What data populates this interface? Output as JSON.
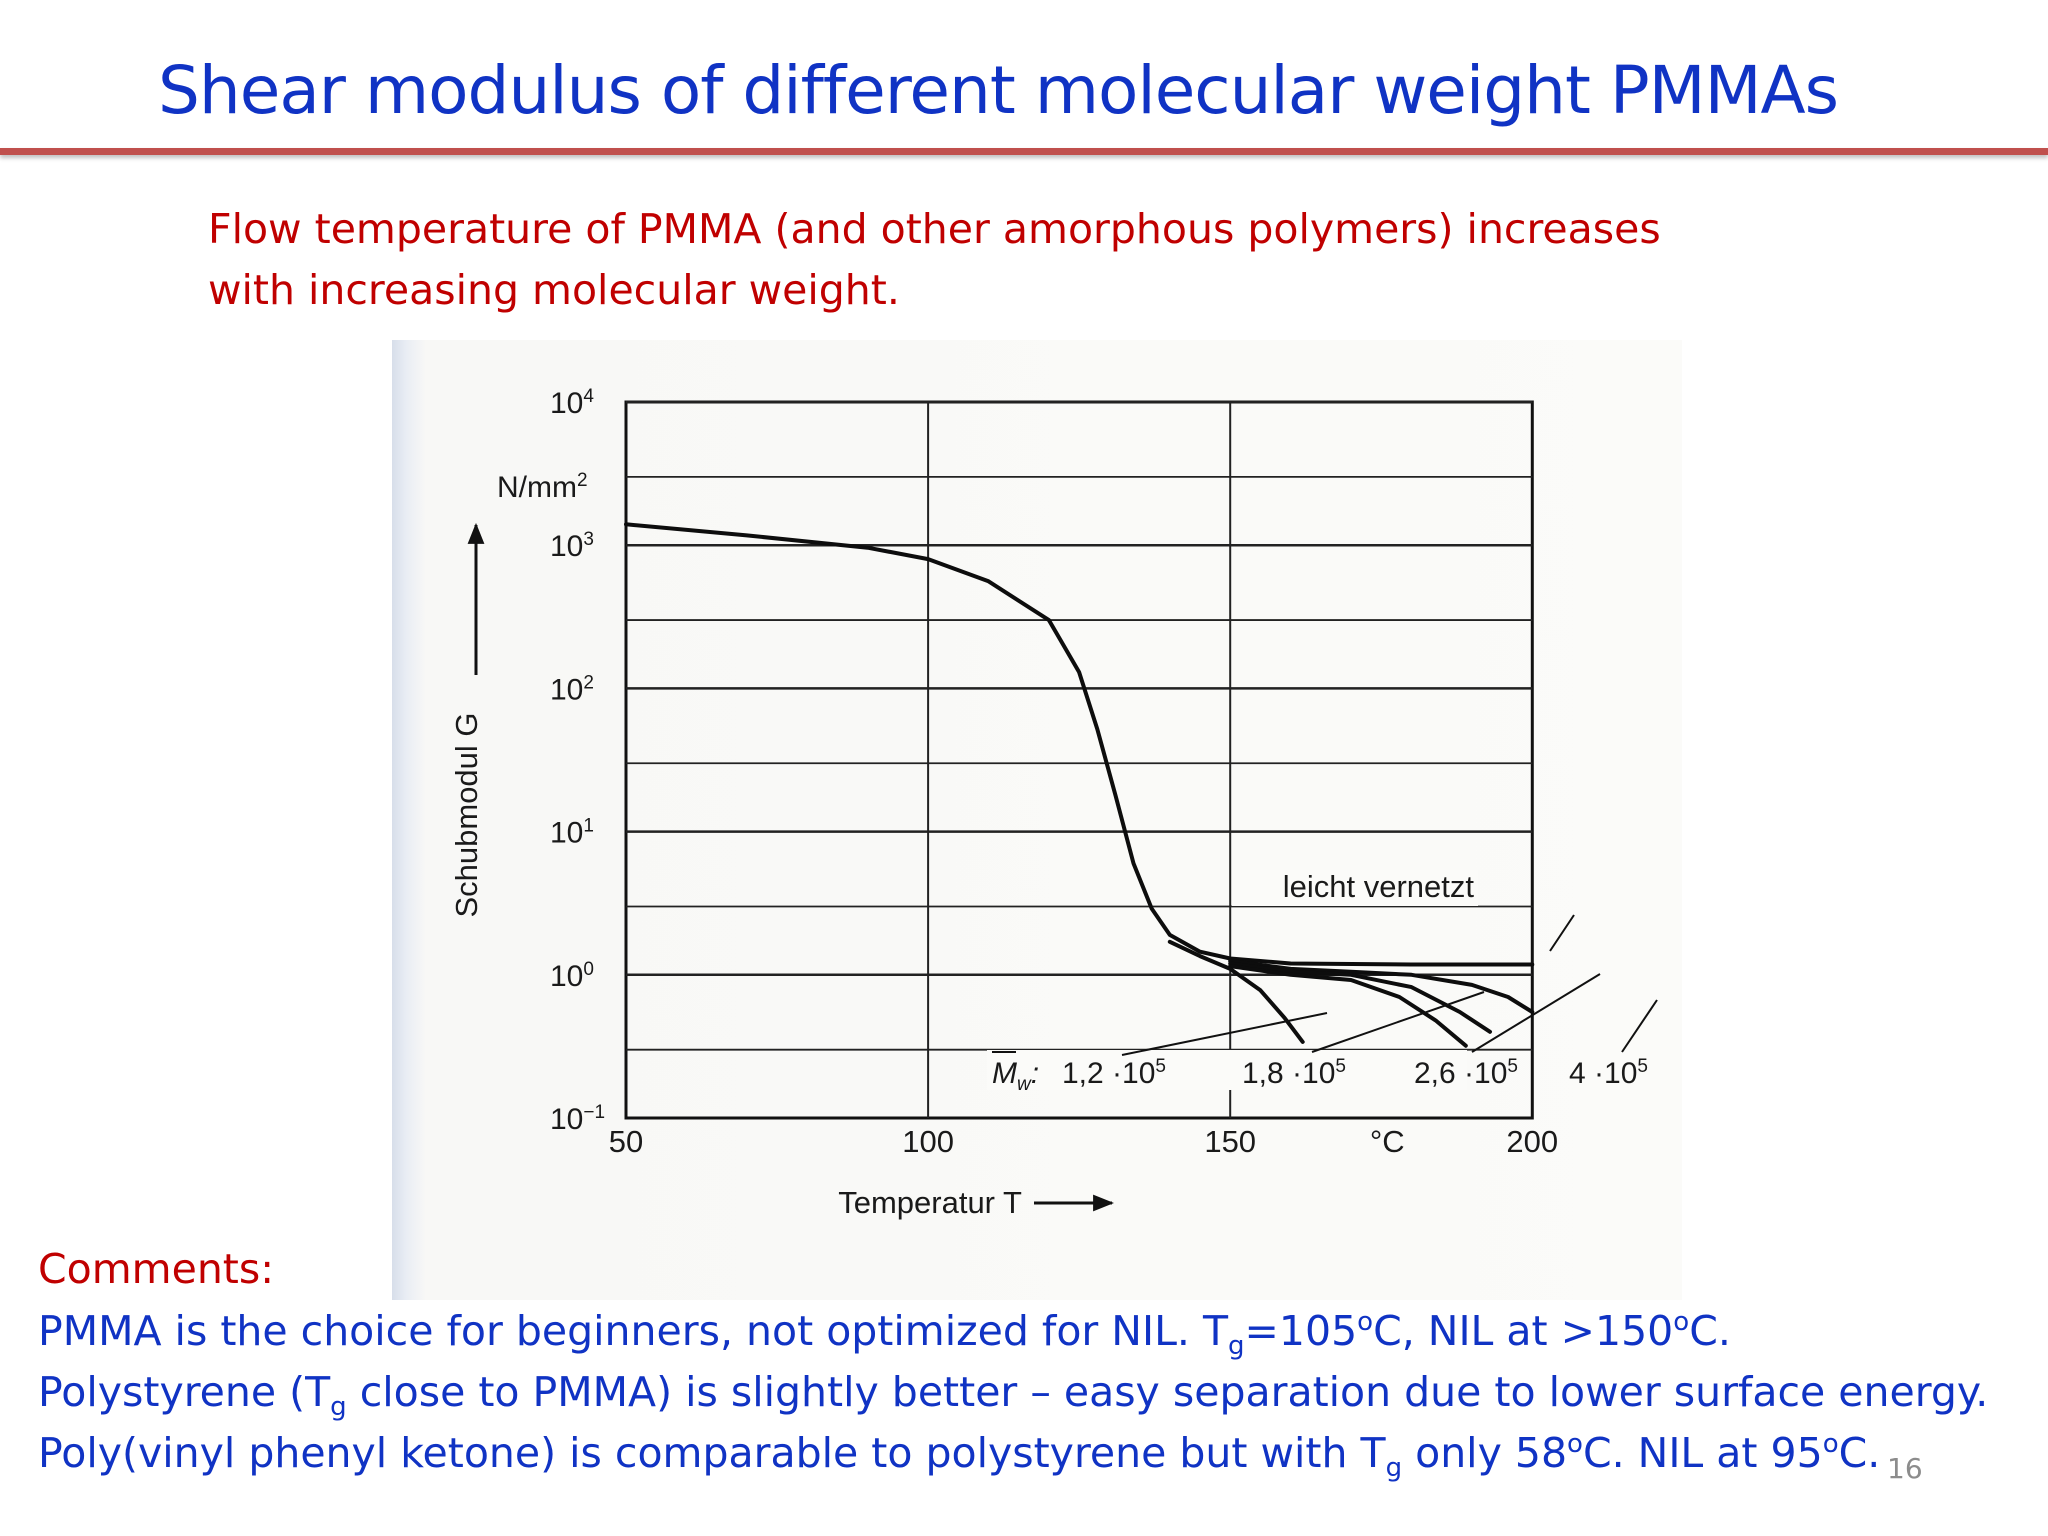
{
  "slide": {
    "title": "Shear modulus of different molecular weight PMMAs",
    "subtitle_lines": [
      "Flow temperature of PMMA (and other amorphous polymers) increases",
      "with increasing molecular weight."
    ],
    "page_number": "16",
    "title_color": "#1033c4",
    "rule_color": "#c0504d",
    "subtitle_color": "#c00000"
  },
  "comments": {
    "label": "Comments:",
    "line1": {
      "before": "PMMA is the choice for beginners, not optimized for NIL. T",
      "sub": "g",
      "mid": "=105",
      "sup1": "o",
      "mid2": "C, NIL at >150",
      "sup2": "o",
      "after": "C."
    },
    "line2": {
      "before": "Polystyrene (T",
      "sub": "g",
      "after": " close to PMMA) is slightly better – easy separation due to lower surface energy."
    },
    "line3": {
      "before": "Poly(vinyl phenyl ketone) is comparable to polystyrene but with T",
      "sub": "g",
      "mid": " only 58",
      "sup1": "o",
      "mid2": "C. NIL at 95",
      "sup2": "o",
      "after": "C."
    }
  },
  "chart_data": {
    "type": "line",
    "y_scale": "log",
    "xlim": [
      50,
      200
    ],
    "ylim_exponents": [
      -1,
      4
    ],
    "x_tick_labels": [
      "50",
      "100",
      "150",
      "°C",
      "200"
    ],
    "x_ticks": [
      50,
      100,
      150,
      200
    ],
    "y_tick_labels": [
      {
        "base": "10",
        "exp": "4",
        "value": 10000
      },
      {
        "base": "10",
        "exp": "3",
        "value": 1000
      },
      {
        "base": "10",
        "exp": "2",
        "value": 100
      },
      {
        "base": "10",
        "exp": "1",
        "value": 10
      },
      {
        "base": "10",
        "exp": "0",
        "value": 1
      },
      {
        "base": "10",
        "exp": "−1",
        "value": 0.1
      }
    ],
    "y_unit": {
      "base": "N/mm",
      "exp": "2"
    },
    "ylabel": "Schubmodul G",
    "xlabel": "Temperatur T",
    "grid": true,
    "curve_labels": {
      "crosslinked": "leicht vernetzt",
      "mw_prefix": "M",
      "mw_sub": "w",
      "mw_colon": ":",
      "mw_values": [
        {
          "mant": "1,2 ·10",
          "exp": "5"
        },
        {
          "mant": "1,8 ·10",
          "exp": "5"
        },
        {
          "mant": "2,6 ·10",
          "exp": "5"
        },
        {
          "mant": "4 ·10",
          "exp": "5"
        }
      ]
    },
    "series": [
      {
        "name": "leicht vernetzt",
        "x": [
          50,
          70,
          90,
          100,
          110,
          120,
          125,
          128,
          131,
          134,
          137,
          140,
          145,
          150,
          160,
          180,
          200
        ],
        "y": [
          1400,
          1170,
          960,
          800,
          560,
          300,
          130,
          52,
          18,
          6,
          2.9,
          1.9,
          1.45,
          1.3,
          1.2,
          1.18,
          1.18
        ]
      },
      {
        "name": "4 ·10^5",
        "x": [
          150,
          160,
          170,
          180,
          190,
          196,
          200
        ],
        "y": [
          1.25,
          1.1,
          1.05,
          1.0,
          0.85,
          0.7,
          0.55
        ]
      },
      {
        "name": "2,6 ·10^5",
        "x": [
          150,
          160,
          170,
          180,
          188,
          193
        ],
        "y": [
          1.2,
          1.05,
          1.0,
          0.82,
          0.55,
          0.4
        ]
      },
      {
        "name": "1,8 ·10^5",
        "x": [
          150,
          160,
          170,
          178,
          184,
          189
        ],
        "y": [
          1.15,
          1.0,
          0.92,
          0.7,
          0.48,
          0.32
        ]
      },
      {
        "name": "1,2 ·10^5",
        "x": [
          140,
          145,
          150,
          155,
          159,
          162
        ],
        "y": [
          1.7,
          1.35,
          1.1,
          0.78,
          0.5,
          0.34
        ]
      }
    ]
  }
}
